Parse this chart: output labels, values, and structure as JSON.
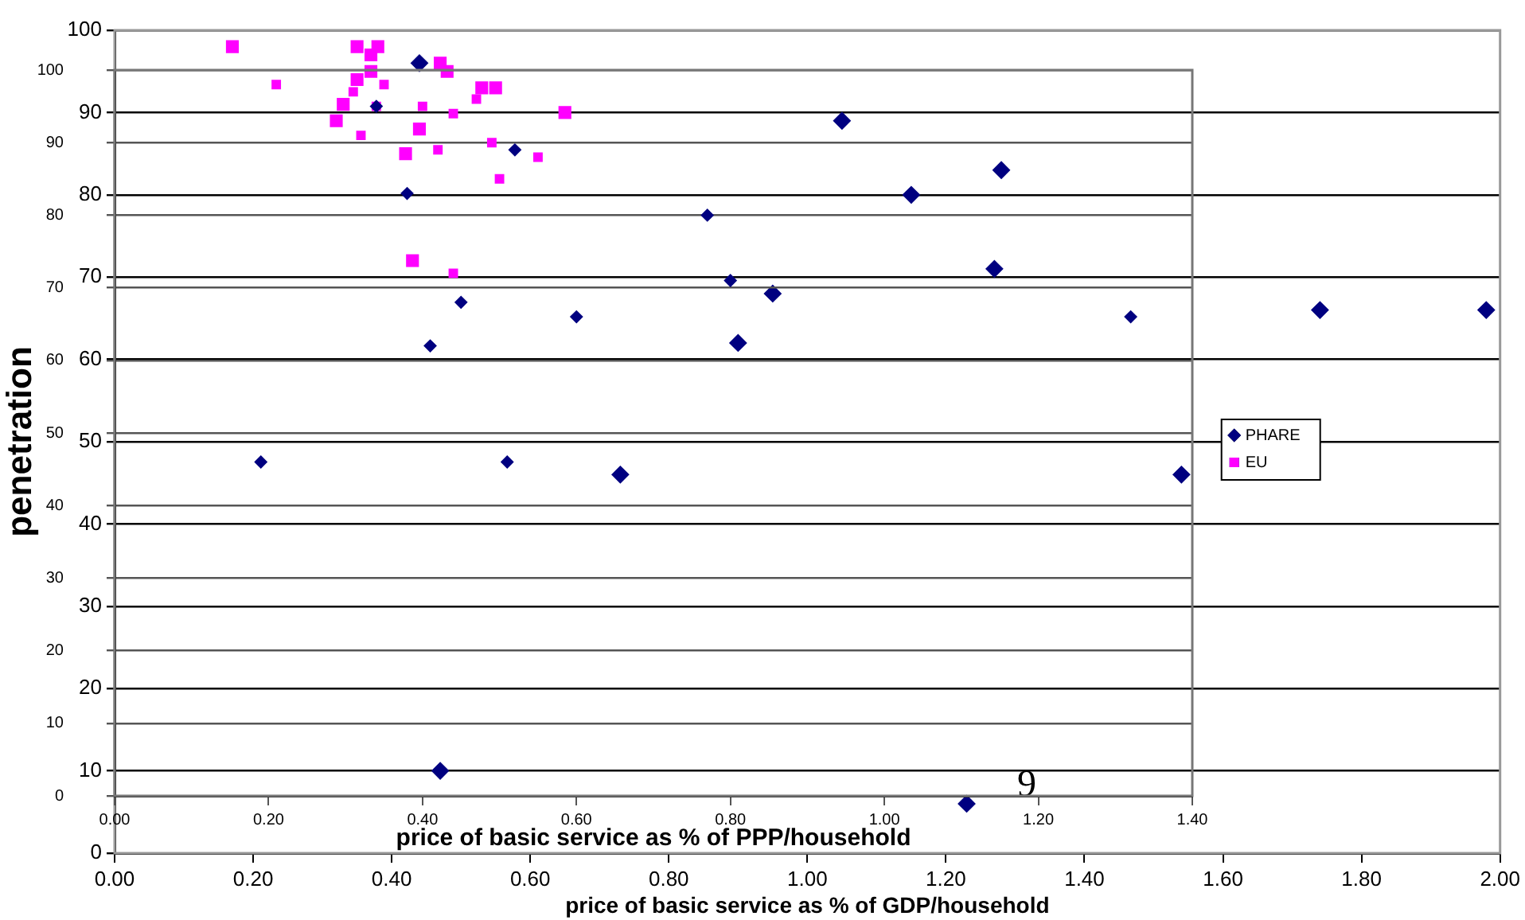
{
  "chart_data": [
    {
      "type": "scatter",
      "ylabel": "penetration",
      "xlabel": "price of basic service as % of GDP/household",
      "xlim": [
        0,
        2
      ],
      "xticks": [
        {
          "value": 0,
          "label": "0.00"
        },
        {
          "value": 0.2,
          "label": "0.20"
        },
        {
          "value": 0.4,
          "label": "0.40"
        },
        {
          "value": 0.6,
          "label": "0.60"
        },
        {
          "value": 0.8,
          "label": "0.80"
        },
        {
          "value": 1,
          "label": "1.00"
        },
        {
          "value": 1.2,
          "label": "1.20"
        },
        {
          "value": 1.4,
          "label": "1.40"
        },
        {
          "value": 1.6,
          "label": "1.60"
        },
        {
          "value": 1.8,
          "label": "1.80"
        },
        {
          "value": 2,
          "label": "2.00"
        }
      ],
      "ylim": [
        0,
        100
      ],
      "yticks": [
        0,
        10,
        20,
        30,
        40,
        50,
        60,
        70,
        80,
        90,
        100
      ],
      "grid": "y",
      "legend": "right",
      "annotations": [
        "9"
      ],
      "series": [
        {
          "name": "PHARE",
          "color": "#000080",
          "marker": "diamond",
          "x": [
            0.44,
            1.05,
            1.28,
            1.15,
            1.27,
            1.74,
            1.98,
            1.54,
            1.23,
            0.73,
            0.9,
            0.95,
            0.47
          ],
          "values": [
            96,
            89,
            83,
            80,
            71,
            66,
            66,
            46,
            6,
            46,
            62,
            68,
            10
          ]
        },
        {
          "name": "EU",
          "color": "#ff00ff",
          "marker": "square",
          "x": [
            0.17,
            0.35,
            0.38,
            0.35,
            0.37,
            0.33,
            0.32,
            0.47,
            0.48,
            0.44,
            0.42,
            0.53,
            0.55,
            0.65,
            0.43,
            0.37
          ],
          "values": [
            98,
            98,
            98,
            94,
            95,
            91,
            89,
            96,
            95,
            88,
            85,
            93,
            93,
            90,
            72,
            97
          ]
        }
      ]
    },
    {
      "type": "scatter",
      "xlabel": "price of basic service as % of PPP/household",
      "xlim": [
        0,
        1.4
      ],
      "xticks": [
        {
          "value": 0,
          "label": "0.00"
        },
        {
          "value": 0.2,
          "label": "0.20"
        },
        {
          "value": 0.4,
          "label": "0.40"
        },
        {
          "value": 0.6,
          "label": "0.60"
        },
        {
          "value": 0.8,
          "label": "0.80"
        },
        {
          "value": 1,
          "label": "1.00"
        },
        {
          "value": 1.2,
          "label": "1.20"
        },
        {
          "value": 1.4,
          "label": "1.40"
        }
      ],
      "ylim": [
        0,
        100
      ],
      "yticks": [
        0,
        10,
        20,
        30,
        40,
        50,
        60,
        70,
        80,
        90,
        100
      ],
      "grid": "y",
      "series": [
        {
          "color": "#000080",
          "marker": "diamond",
          "x": [
            0.34,
            0.52,
            0.38,
            0.45,
            0.41,
            0.6,
            0.19,
            0.51,
            0.77,
            0.8,
            1.32
          ],
          "values": [
            95,
            89,
            83,
            68,
            62,
            66,
            46,
            46,
            80,
            71,
            66
          ]
        },
        {
          "color": "#ff00ff",
          "marker": "square",
          "x": [
            0.21,
            0.35,
            0.31,
            0.34,
            0.32,
            0.4,
            0.42,
            0.44,
            0.47,
            0.49,
            0.5,
            0.55,
            0.44
          ],
          "values": [
            98,
            98,
            97,
            95,
            91,
            95,
            89,
            94,
            96,
            90,
            85,
            88,
            72
          ]
        }
      ]
    }
  ]
}
